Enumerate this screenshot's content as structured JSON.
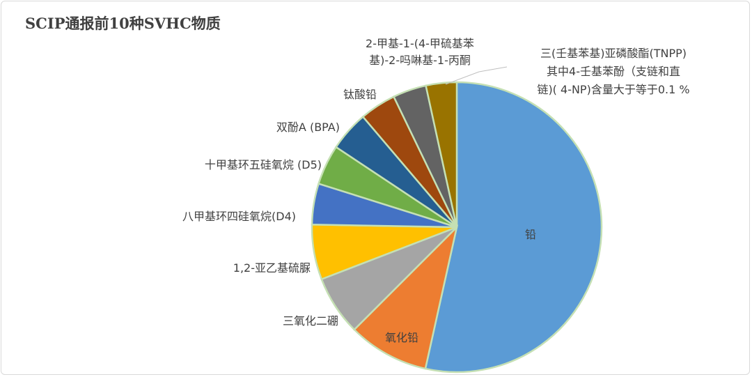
{
  "chart_data": {
    "type": "pie",
    "title": "SCIP通报前10种SVHC物质",
    "slices": [
      {
        "label": "铅",
        "value": 51.5,
        "color": "#5b9bd5"
      },
      {
        "label": "氧化铅",
        "value": 8.7,
        "color": "#ed7d31"
      },
      {
        "label": "三氧化二硼",
        "value": 6.4,
        "color": "#a5a5a5"
      },
      {
        "label": "1,2-亚乙基硫脲",
        "value": 5.9,
        "color": "#ffc000"
      },
      {
        "label": "八甲基环四硅氧烷(D4)",
        "value": 4.4,
        "color": "#4472c4"
      },
      {
        "label": "十甲基环五硅氧烷 (D5)",
        "value": 4.3,
        "color": "#70ad47"
      },
      {
        "label": "双酚A (BPA)",
        "value": 4.3,
        "color": "#255e91"
      },
      {
        "label": "钛酸铅",
        "value": 3.9,
        "color": "#9e480e"
      },
      {
        "label": "2-甲基-1-(4-甲硫基苯基)-2-吗啉基-1-丙酮",
        "value": 3.6,
        "color": "#636363"
      },
      {
        "label": "三(壬基苯基)亚磷酸酯(TNPP) 其中4-壬基苯酚（支链和直链)( 4-NP)含量大于等于0.1 %",
        "value": 3.3,
        "color": "#997300"
      }
    ],
    "label_lines": [
      [
        "铅"
      ],
      [
        "氧化铅"
      ],
      [
        "三氧化二硼"
      ],
      [
        "1,2-亚乙基硫脲"
      ],
      [
        "八甲基环四硅氧烷(D4)"
      ],
      [
        "十甲基环五硅氧烷 (D5)"
      ],
      [
        "双酚A (BPA)"
      ],
      [
        "钛酸铅"
      ],
      [
        "2-甲基-1-(4-甲硫基苯",
        "基)-2-吗啉基-1-丙酮"
      ],
      [
        "三(壬基苯基)亚磷酸酯(TNPP)",
        "其中4-壬基苯酚（支链和直",
        "链)( 4-NP)含量大于等于0.1 %"
      ]
    ],
    "legend": "none"
  }
}
